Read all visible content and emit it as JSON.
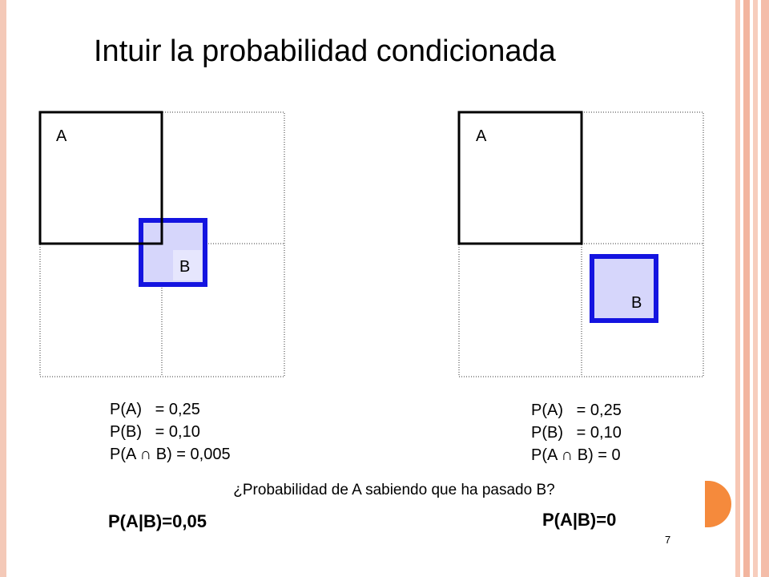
{
  "header": {
    "title": "Intuir la probabilidad condicionada"
  },
  "panels": [
    {
      "label_a": "A",
      "label_b": "B",
      "lines": [
        "P(A)   = 0,25",
        "P(B)   = 0,10",
        "P(A ∩ B) = 0,005"
      ],
      "answer": "P(A|B)=0,05"
    },
    {
      "label_a": "A",
      "label_b": "B",
      "lines": [
        "P(A)   = 0,25",
        "P(B)   = 0,10",
        "P(A ∩ B) = 0"
      ],
      "answer": "P(A|B)=0"
    }
  ],
  "question": "¿Probabilidad de A sabiendo que ha pasado B?",
  "page_number": "7"
}
